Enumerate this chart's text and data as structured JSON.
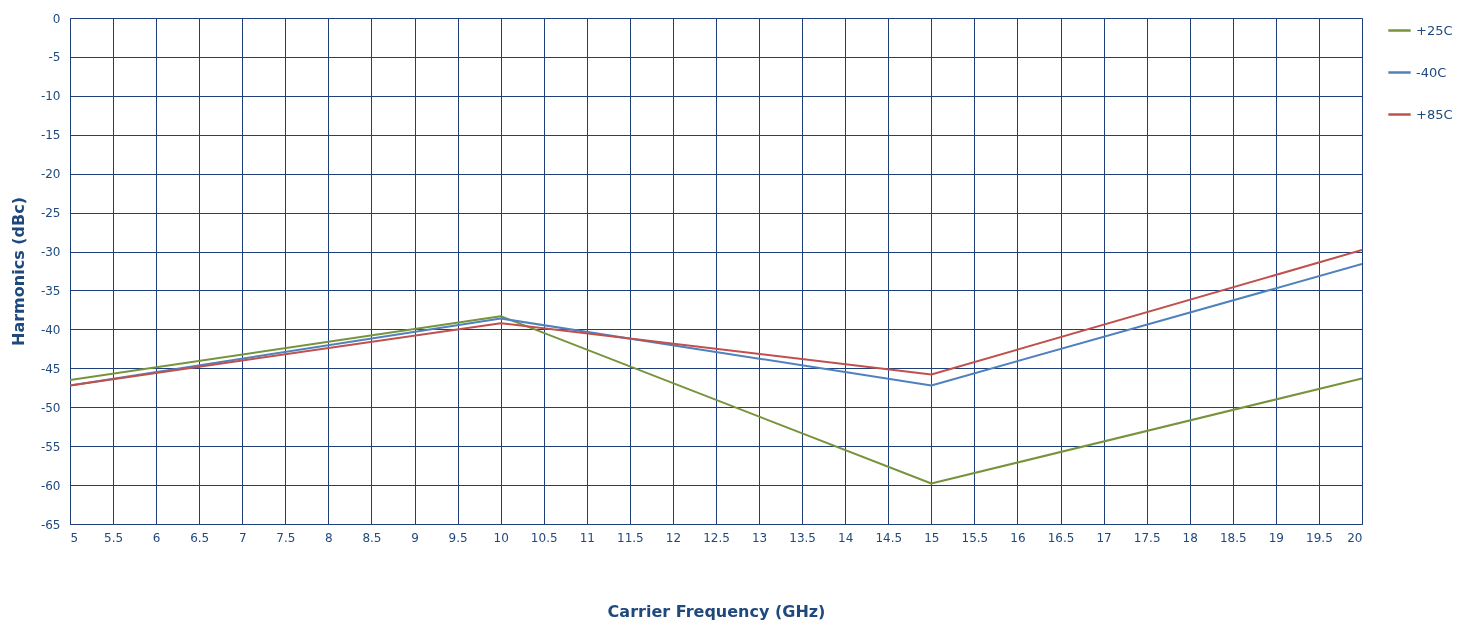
{
  "chart_data": {
    "type": "line",
    "xlabel": "Carrier Frequency (GHz)",
    "ylabel": "Harmonics (dBc)",
    "x": [
      5,
      10,
      15,
      20
    ],
    "series": [
      {
        "name": "+25C",
        "color": "#77933c",
        "values": [
          -46.5,
          -38.3,
          -59.8,
          -46.3
        ]
      },
      {
        "name": "-40C",
        "color": "#4f81bd",
        "values": [
          -47.2,
          -38.6,
          -47.2,
          -31.6
        ]
      },
      {
        "name": "+85C",
        "color": "#c0504d",
        "values": [
          -47.2,
          -39.2,
          -45.8,
          -29.8
        ]
      }
    ],
    "xlim": [
      5,
      20
    ],
    "xticks": [
      5,
      5.5,
      6,
      6.5,
      7,
      7.5,
      8,
      8.5,
      9,
      9.5,
      10,
      10.5,
      11,
      11.5,
      12,
      12.5,
      13,
      13.5,
      14,
      14.5,
      15,
      15.5,
      16,
      16.5,
      17,
      17.5,
      18,
      18.5,
      19,
      19.5,
      20
    ],
    "ylim": [
      -65,
      0
    ],
    "yticks": [
      0,
      -5,
      -10,
      -15,
      -20,
      -25,
      -30,
      -35,
      -40,
      -45,
      -50,
      -55,
      -60,
      -65
    ],
    "grid": true,
    "legend": "right"
  }
}
